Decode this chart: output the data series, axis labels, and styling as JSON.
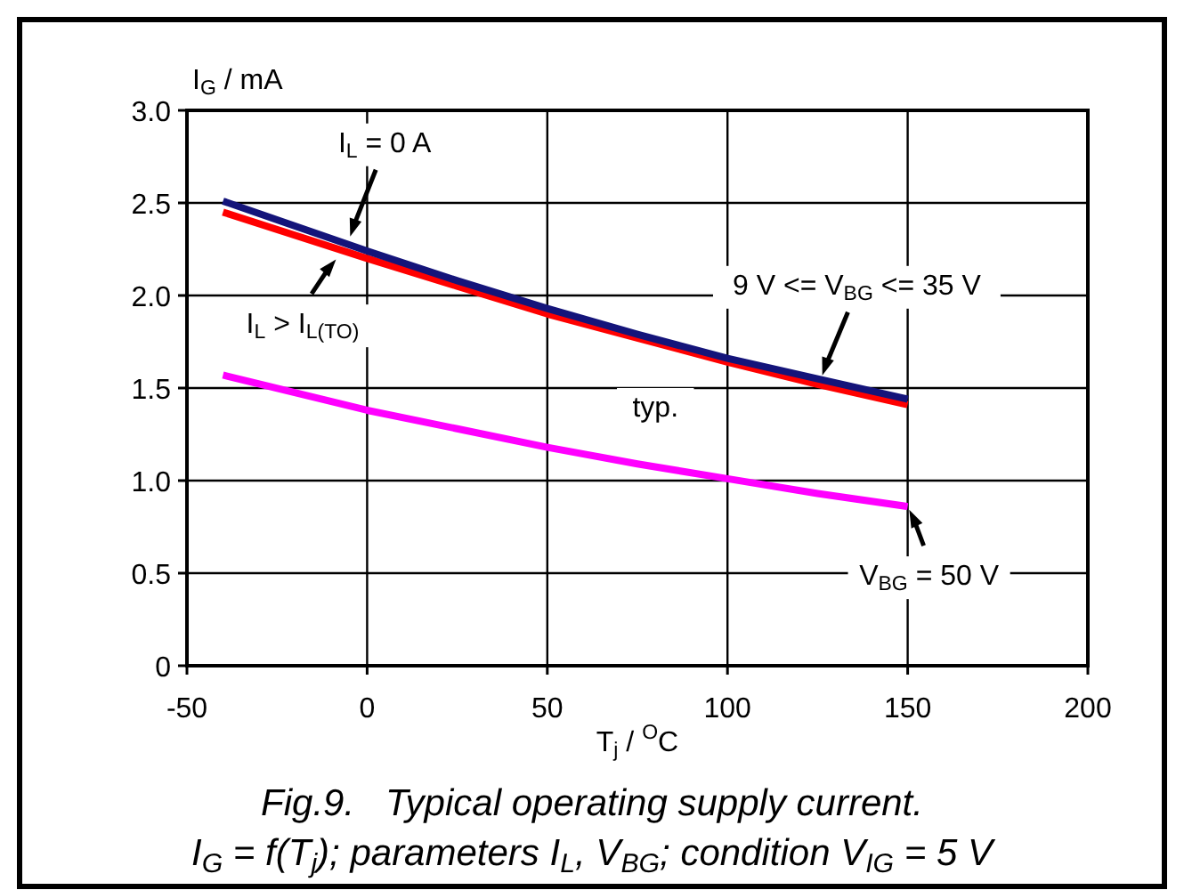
{
  "chart_data": {
    "type": "line",
    "title": "Fig.9.   Typical operating supply current.",
    "subtitle": "I$_{G}$ = f(T$_{j}$); parameters I$_{L}$, V$_{BG}$; condition V$_{IG}$ = 5 V",
    "xlabel": "T$_{j}$ / $^{O}$C",
    "ylabel": "I$_{G}$ / mA",
    "x": [
      -40,
      0,
      25,
      50,
      75,
      100,
      125,
      150
    ],
    "series": [
      {
        "color": "#ff0000",
        "values": [
          2.45,
          2.2,
          2.05,
          1.9,
          1.77,
          1.64,
          1.52,
          1.41
        ]
      },
      {
        "color": "#14147a",
        "values": [
          2.51,
          2.24,
          2.08,
          1.93,
          1.79,
          1.66,
          1.55,
          1.44
        ]
      },
      {
        "color": "#ff00ff",
        "values": [
          1.57,
          1.38,
          1.28,
          1.18,
          1.09,
          1.01,
          0.93,
          0.86
        ]
      }
    ],
    "xlim": [
      -50,
      200
    ],
    "xticks": [
      -50,
      0,
      50,
      100,
      150,
      200
    ],
    "ylim": [
      0,
      3
    ],
    "yticks": [
      0,
      0.5,
      {
        "value": 1,
        "label": "1.0"
      },
      1.5,
      {
        "value": 2,
        "label": "2.0"
      },
      2.5,
      {
        "value": 3,
        "label": "3.0"
      }
    ],
    "grid": true,
    "marker": "none",
    "line_style": "solid",
    "annotations": [
      {
        "text": "I$_{L}$ = 0 A",
        "x": -5,
        "y": 2.3
      },
      {
        "text": "I$_{L}$ > I$_{L(TO)}$",
        "x": -8,
        "y": 2.21
      },
      {
        "text": "9 V <= V$_{BG}$ <= 35 V",
        "x": 126,
        "y": 1.55
      },
      "typ.",
      {
        "text": "V$_{BG}$ = 50 V",
        "x": 150,
        "y": 0.86
      }
    ]
  }
}
